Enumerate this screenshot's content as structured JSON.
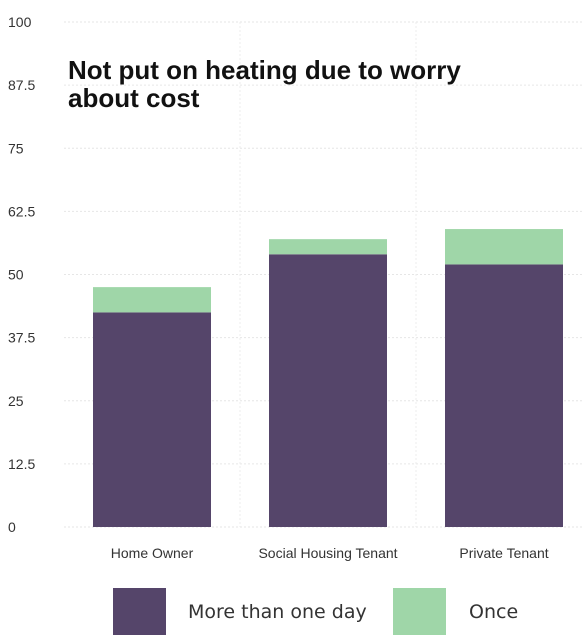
{
  "chart_data": {
    "type": "bar",
    "stacked": true,
    "title": "Not put on heating due to worry about cost",
    "title_lines": [
      "Not put on heating due to worry",
      "about cost"
    ],
    "categories": [
      "Home Owner",
      "Social Housing Tenant",
      "Private Tenant"
    ],
    "series": [
      {
        "name": "More than one day",
        "values": [
          42.5,
          54.0,
          52.0
        ],
        "color": "#55456a"
      },
      {
        "name": "Once",
        "values": [
          5.0,
          3.0,
          7.0
        ],
        "color": "#9fd6a8"
      }
    ],
    "xlabel": "",
    "ylabel": "",
    "ylim": [
      0,
      100
    ],
    "yticks": [
      "0",
      "12.5",
      "25",
      "37.5",
      "50",
      "62.5",
      "75",
      "87.5",
      "100"
    ],
    "ytick_values": [
      0,
      12.5,
      25,
      37.5,
      50,
      62.5,
      75,
      87.5,
      100
    ],
    "grid": true,
    "legend_position": "bottom"
  }
}
